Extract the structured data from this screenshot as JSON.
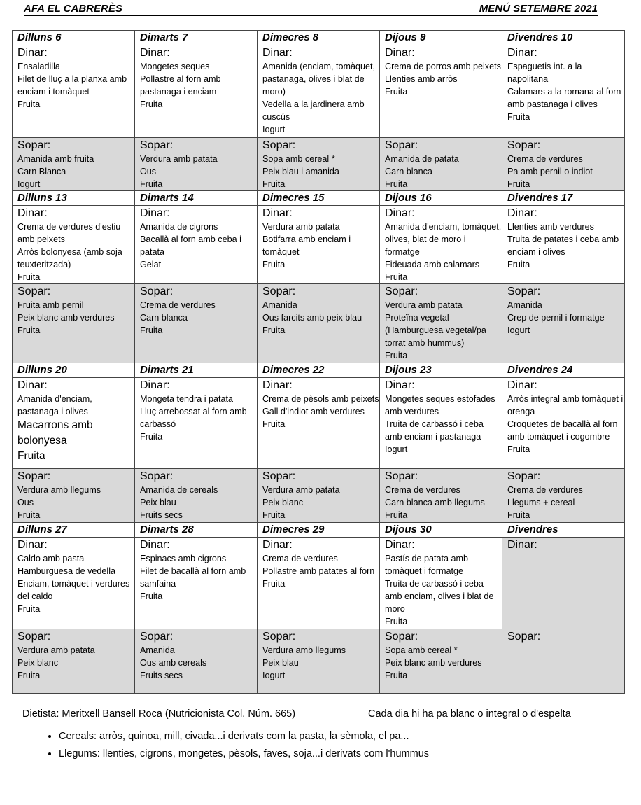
{
  "header": {
    "left": "AFA EL CABRERÈS",
    "right": "MENÚ SETEMBRE 2021"
  },
  "weeks": [
    {
      "days": [
        {
          "header": "Dilluns 6",
          "dinar_label": "Dinar:",
          "dinar": [
            "Ensaladilla",
            "Filet de lluç a la planxa amb enciam i tomàquet",
            "Fruita"
          ],
          "sopar_label": "Sopar:",
          "sopar": [
            "Amanida amb fruita",
            "Carn Blanca",
            "Iogurt"
          ]
        },
        {
          "header": "Dimarts 7",
          "dinar_label": "Dinar:",
          "dinar": [
            "Mongetes seques",
            "Pollastre al forn amb pastanaga i enciam",
            "Fruita"
          ],
          "sopar_label": "Sopar:",
          "sopar": [
            "Verdura amb patata",
            "Ous",
            "Fruita"
          ]
        },
        {
          "header": "Dimecres 8",
          "dinar_label": "Dinar:",
          "dinar": [
            "Amanida (enciam, tomàquet, pastanaga, olives i blat de moro)",
            "Vedella a la jardinera amb cuscús",
            "Iogurt"
          ],
          "sopar_label": "Sopar:",
          "sopar": [
            "Sopa amb cereal *",
            "Peix blau i amanida",
            "Fruita"
          ]
        },
        {
          "header": "Dijous 9",
          "dinar_label": "Dinar:",
          "dinar": [
            "Crema de porros amb peixets",
            "Llenties amb arròs",
            "Fruita"
          ],
          "sopar_label": "Sopar:",
          "sopar": [
            "Amanida de patata",
            "Carn blanca",
            "Fruita"
          ]
        },
        {
          "header": "Divendres 10",
          "dinar_label": "Dinar:",
          "dinar": [
            "Espaguetis int. a la napolitana",
            "Calamars a la romana al forn amb pastanaga i olives",
            "Fruita"
          ],
          "sopar_label": "Sopar:",
          "sopar": [
            "Crema de verdures",
            "Pa amb pernil o indiot",
            "Fruita"
          ]
        }
      ]
    },
    {
      "days": [
        {
          "header": "Dilluns 13",
          "dinar_label": "Dinar:",
          "dinar": [
            "Crema de verdures d'estiu amb peixets",
            "Arròs bolonyesa (amb soja teuxteritzada)",
            "Fruita"
          ],
          "sopar_label": "Sopar:",
          "sopar": [
            "Fruita amb pernil",
            "Peix blanc amb verdures",
            "Fruita"
          ]
        },
        {
          "header": "Dimarts 14",
          "dinar_label": "Dinar:",
          "dinar": [
            "Amanida de cigrons",
            "Bacallà al forn amb ceba i patata",
            "Gelat"
          ],
          "sopar_label": "Sopar:",
          "sopar": [
            "Crema de verdures",
            "Carn blanca",
            "Fruita"
          ]
        },
        {
          "header": "Dimecres 15",
          "dinar_label": "Dinar:",
          "dinar": [
            "Verdura amb patata",
            "Botifarra amb enciam i tomàquet",
            "Fruita"
          ],
          "sopar_label": "Sopar:",
          "sopar": [
            "Amanida",
            "Ous farcits amb peix blau",
            "Fruita"
          ]
        },
        {
          "header": "Dijous 16",
          "dinar_label": "Dinar:",
          "dinar": [
            "Amanida d'enciam, tomàquet, olives, blat de moro i formatge",
            "Fideuada amb calamars",
            "Fruita"
          ],
          "sopar_label": "Sopar:",
          "sopar": [
            "Verdura amb patata",
            "Proteïna vegetal (Hamburguesa vegetal/pa torrat amb hummus)",
            "Fruita"
          ]
        },
        {
          "header": "Divendres 17",
          "dinar_label": "Dinar:",
          "dinar": [
            "Llenties amb verdures",
            "Truita de patates i ceba amb enciam i olives",
            "Fruita"
          ],
          "sopar_label": "Sopar:",
          "sopar": [
            "Amanida",
            "Crep de pernil i formatge",
            "Iogurt"
          ]
        }
      ]
    },
    {
      "days": [
        {
          "header": "Dilluns 20",
          "dinar_label": "Dinar:",
          "dinar": [
            "Amanida d'enciam, pastanaga i olives",
            "Macarrons amb bolonyesa",
            "Fruita"
          ],
          "sopar_label": "Sopar:",
          "sopar": [
            "Verdura amb llegums",
            "Ous",
            "Fruita"
          ]
        },
        {
          "header": "Dimarts 21",
          "dinar_label": "Dinar:",
          "dinar": [
            "Mongeta tendra i patata",
            "Lluç arrebossat al forn amb carbassó",
            "Fruita"
          ],
          "sopar_label": "Sopar:",
          "sopar": [
            "Amanida de cereals",
            "Peix blau",
            "Fruits secs"
          ]
        },
        {
          "header": "Dimecres 22",
          "dinar_label": "Dinar:",
          "dinar": [
            "Crema de pèsols amb peixets",
            "Gall d'indiot amb verdures",
            "Fruita"
          ],
          "sopar_label": "Sopar:",
          "sopar": [
            "Verdura amb patata",
            "Peix blanc",
            "Fruita"
          ]
        },
        {
          "header": "Dijous 23",
          "dinar_label": "Dinar:",
          "dinar": [
            "Mongetes seques estofades amb verdures",
            "Truita de carbassó i ceba amb enciam i pastanaga",
            "Iogurt"
          ],
          "sopar_label": "Sopar:",
          "sopar": [
            "Crema de verdures",
            "Carn blanca amb llegums",
            "Fruita"
          ]
        },
        {
          "header": "Divendres 24",
          "dinar_label": "Dinar:",
          "dinar": [
            "Arròs integral amb tomàquet i orenga",
            "Croquetes de bacallà al forn amb tomàquet i cogombre",
            "Fruita"
          ],
          "sopar_label": "Sopar:",
          "sopar": [
            "Crema de verdures",
            "Llegums + cereal",
            "Fruita"
          ]
        }
      ]
    },
    {
      "days": [
        {
          "header": "Dilluns 27",
          "dinar_label": "Dinar:",
          "dinar": [
            "Caldo amb pasta",
            "Hamburguesa de vedella",
            "Enciam, tomàquet i verdures del caldo",
            "Fruita"
          ],
          "sopar_label": "Sopar:",
          "sopar": [
            "Verdura amb patata",
            "Peix blanc",
            "Fruita"
          ]
        },
        {
          "header": "Dimarts 28",
          "dinar_label": "Dinar:",
          "dinar": [
            "Espinacs amb cigrons",
            "Filet de bacallà al forn amb samfaina",
            "Fruita"
          ],
          "sopar_label": "Sopar:",
          "sopar": [
            "Amanida",
            "Ous amb cereals",
            "Fruits secs"
          ]
        },
        {
          "header": "Dimecres 29",
          "dinar_label": "Dinar:",
          "dinar": [
            "Crema de verdures",
            "Pollastre amb patates al forn",
            "Fruita"
          ],
          "sopar_label": "Sopar:",
          "sopar": [
            "Verdura amb llegums",
            "Peix blau",
            "Iogurt"
          ]
        },
        {
          "header": "Dijous 30",
          "dinar_label": "Dinar:",
          "dinar": [
            "Pastís de patata amb tomàquet i formatge",
            "Truita de carbassó i ceba amb enciam, olives i blat de moro",
            "Fruita"
          ],
          "sopar_label": "Sopar:",
          "sopar": [
            "Sopa amb cereal *",
            "Peix blanc amb verdures",
            "Fruita"
          ]
        },
        {
          "header": "Divendres",
          "dinar_label": "Dinar:",
          "dinar": [],
          "sopar_label": "Sopar:",
          "sopar": []
        }
      ]
    }
  ],
  "footer": {
    "dietista": "Dietista: Meritxell Bansell Roca (Nutricionista Col. Núm. 665)",
    "pa": "Cada dia hi ha pa blanc o integral o d'espelta"
  },
  "notes": [
    "Cereals: arròs, quinoa, mill, civada...i derivats com la pasta, la sèmola, el pa...",
    "Llegums: llenties, cigrons, mongetes, pèsols, faves, soja...i derivats com l'hummus"
  ]
}
